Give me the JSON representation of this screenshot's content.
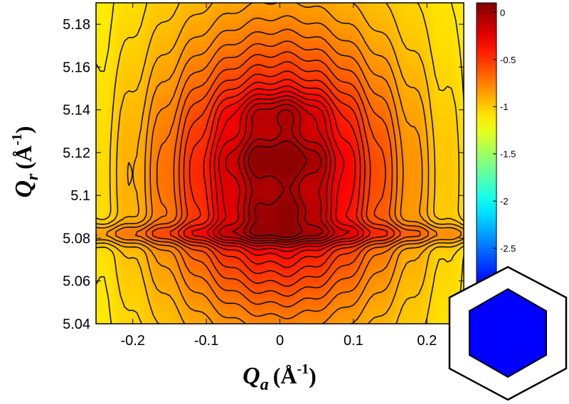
{
  "chart_data": {
    "type": "heatmap",
    "subtype": "contour",
    "xlabel": {
      "symbol": "Q",
      "subscript": "a",
      "unit": "(Å",
      "exponent": "-1",
      "close": ")"
    },
    "ylabel": {
      "symbol": "Q",
      "subscript": "r",
      "unit": "(Å",
      "exponent": "-1",
      "close": ")"
    },
    "xlim": [
      -0.25,
      0.25
    ],
    "ylim": [
      5.04,
      5.19
    ],
    "xticks": [
      "-0.2",
      "-0.1",
      "0",
      "0.1",
      "0.2"
    ],
    "xtick_values": [
      -0.2,
      -0.1,
      0,
      0.1,
      0.2
    ],
    "yticks": [
      "5.04",
      "5.06",
      "5.08",
      "5.1",
      "5.12",
      "5.14",
      "5.16",
      "5.18"
    ],
    "ytick_values": [
      5.04,
      5.06,
      5.08,
      5.1,
      5.12,
      5.14,
      5.16,
      5.18
    ],
    "colorbar": {
      "range": [
        -3.3,
        0.1
      ],
      "ticks": [
        "0",
        "-0.5",
        "-1",
        "-1.5",
        "-2",
        "-2.5"
      ],
      "tick_values": [
        0,
        -0.5,
        -1,
        -1.5,
        -2,
        -2.5
      ],
      "colormap": "jet"
    },
    "peaks": [
      {
        "qa": 0.0,
        "qr": 5.091,
        "value": 0.0
      },
      {
        "qa": 0.0,
        "qr": 5.117,
        "value": -0.05
      },
      {
        "qa": 0.0,
        "qr": 5.139,
        "value": -0.05
      }
    ],
    "streak": {
      "qr": 5.082,
      "orientation": "horizontal"
    },
    "grid": false
  },
  "inset": {
    "icon": "hexagon-icon",
    "outer_color": "#ffffff",
    "inner_color": "#0000ff",
    "stroke_color": "#000000"
  }
}
